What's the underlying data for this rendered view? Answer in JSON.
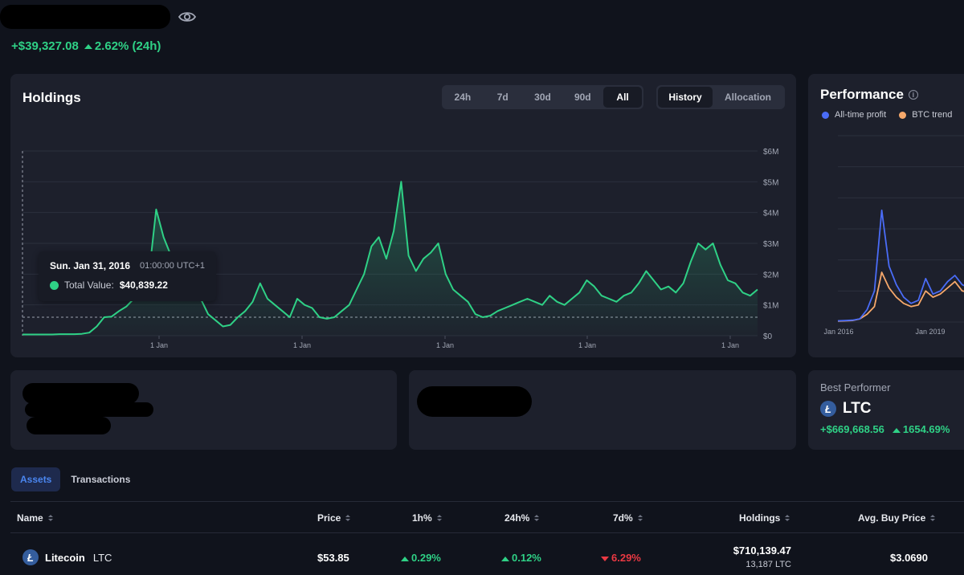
{
  "header": {
    "profit_value": "+$39,327.08",
    "change_24h": "2.62% (24h)",
    "eye_icon": "eye-icon"
  },
  "holdings": {
    "title": "Holdings",
    "ranges": [
      "24h",
      "7d",
      "30d",
      "90d",
      "All"
    ],
    "active_range": "All",
    "modes": [
      "History",
      "Allocation"
    ],
    "active_mode": "History",
    "tooltip": {
      "date": "Sun. Jan 31, 2016",
      "time": "01:00:00 UTC+1",
      "label": "Total Value:",
      "value": "$40,839.22"
    }
  },
  "chart_data": {
    "type": "area",
    "xlabel": "",
    "ylabel": "",
    "y_tick_labels": [
      "$0",
      "$1M",
      "$2M",
      "$3M",
      "$4M",
      "$5M",
      "$6M"
    ],
    "x_tick_labels": [
      "1 Jan",
      "1 Jan",
      "1 Jan",
      "1 Jan",
      "1 Jan"
    ],
    "ylim": [
      0,
      6
    ],
    "y_unit": "$M",
    "grid": true,
    "line_color": "#2fd186",
    "series": [
      {
        "values": [
          0.04,
          0.04,
          0.04,
          0.04,
          0.04,
          0.05,
          0.05,
          0.05,
          0.06,
          0.1,
          0.3,
          0.6,
          0.62,
          0.8,
          0.95,
          1.2,
          1.5,
          1.9,
          4.1,
          3.2,
          2.6,
          2.2,
          1.7,
          1.4,
          1.2,
          0.7,
          0.5,
          0.3,
          0.35,
          0.6,
          0.8,
          1.1,
          1.7,
          1.2,
          1.0,
          0.8,
          0.6,
          1.2,
          1.0,
          0.9,
          0.6,
          0.55,
          0.6,
          0.8,
          1.0,
          1.5,
          2.0,
          2.9,
          3.2,
          2.5,
          3.4,
          5.0,
          2.6,
          2.1,
          2.5,
          2.7,
          3.0,
          2.0,
          1.5,
          1.3,
          1.1,
          0.7,
          0.6,
          0.65,
          0.8,
          0.9,
          1.0,
          1.1,
          1.2,
          1.1,
          1.0,
          1.3,
          1.1,
          1.0,
          1.2,
          1.4,
          1.8,
          1.6,
          1.3,
          1.2,
          1.1,
          1.3,
          1.4,
          1.7,
          2.1,
          1.8,
          1.5,
          1.6,
          1.4,
          1.7,
          2.4,
          3.0,
          2.8,
          3.0,
          2.3,
          1.8,
          1.7,
          1.4,
          1.3,
          1.5
        ]
      }
    ]
  },
  "performance": {
    "title": "Performance",
    "info_icon": "info-icon",
    "legend": [
      {
        "name": "All-time profit",
        "color": "#4a6cf7"
      },
      {
        "name": "BTC trend",
        "color": "#f6a86b"
      }
    ],
    "x_tick_labels": [
      "Jan 2016",
      "Jan 2019"
    ],
    "series_profit": [
      0.04,
      0.05,
      0.06,
      0.1,
      0.4,
      1.0,
      3.6,
      1.8,
      1.2,
      0.8,
      0.6,
      0.7,
      1.4,
      0.9,
      1.0,
      1.3,
      1.5,
      1.2,
      1.1,
      1.0
    ],
    "series_btc": [
      0.03,
      0.04,
      0.05,
      0.1,
      0.25,
      0.5,
      1.6,
      1.1,
      0.8,
      0.6,
      0.5,
      0.55,
      1.0,
      0.8,
      0.9,
      1.1,
      1.3,
      1.0,
      0.95,
      0.9
    ]
  },
  "best_performer": {
    "label": "Best Performer",
    "symbol": "LTC",
    "profit": "+$669,668.56",
    "percent": "1654.69%"
  },
  "tabs": [
    "Assets",
    "Transactions"
  ],
  "active_tab": "Assets",
  "table": {
    "headers": [
      "Name",
      "Price",
      "1h%",
      "24h%",
      "7d%",
      "Holdings",
      "Avg. Buy Price"
    ],
    "rows": [
      {
        "name": "Litecoin",
        "symbol": "LTC",
        "price": "$53.85",
        "h1": "0.29%",
        "h24": "0.12%",
        "d7": "6.29%",
        "holdings_value": "$710,139.47",
        "holdings_amount": "13,187 LTC",
        "avg_buy": "$3.0690"
      }
    ]
  }
}
